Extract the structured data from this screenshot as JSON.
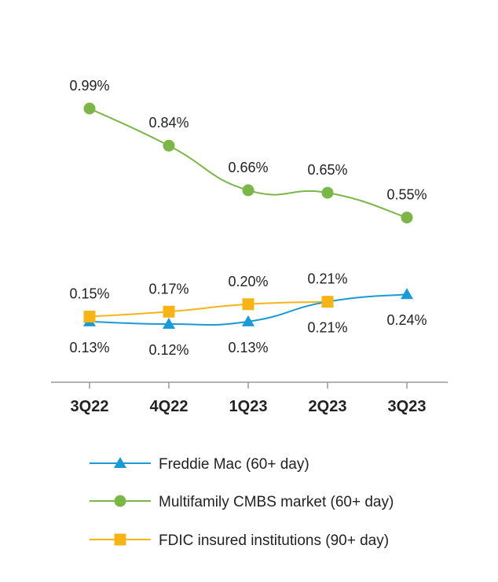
{
  "chart_data": {
    "type": "line",
    "categories": [
      "3Q22",
      "4Q22",
      "1Q23",
      "2Q23",
      "3Q23"
    ],
    "ylim": [
      0,
      1.1
    ],
    "grid": false,
    "legend_position": "bottom",
    "series": [
      {
        "name": "Freddie Mac (60+ day)",
        "values": [
          0.13,
          0.12,
          0.13,
          0.21,
          0.24
        ],
        "labels": [
          "0.13%",
          "0.12%",
          "0.13%",
          "0.21%",
          "0.24%"
        ],
        "label_side": [
          "below",
          "below",
          "below",
          "below",
          "below"
        ],
        "color": "#1a9ad6",
        "marker": "triangle"
      },
      {
        "name": "Multifamily CMBS market (60+ day)",
        "values": [
          0.99,
          0.84,
          0.66,
          0.65,
          0.55
        ],
        "labels": [
          "0.99%",
          "0.84%",
          "0.66%",
          "0.65%",
          "0.55%"
        ],
        "label_side": [
          "above",
          "above",
          "above",
          "above",
          "above"
        ],
        "color": "#7ab648",
        "marker": "circle"
      },
      {
        "name": "FDIC insured institutions (90+ day)",
        "values": [
          0.15,
          0.17,
          0.2,
          0.21,
          null
        ],
        "labels": [
          "0.15%",
          "0.17%",
          "0.20%",
          "0.21%",
          null
        ],
        "label_side": [
          "above",
          "above",
          "above",
          "above",
          "above"
        ],
        "color": "#f7b417",
        "marker": "square"
      }
    ]
  },
  "colors": {
    "axis": "#999999",
    "text": "#222222"
  }
}
